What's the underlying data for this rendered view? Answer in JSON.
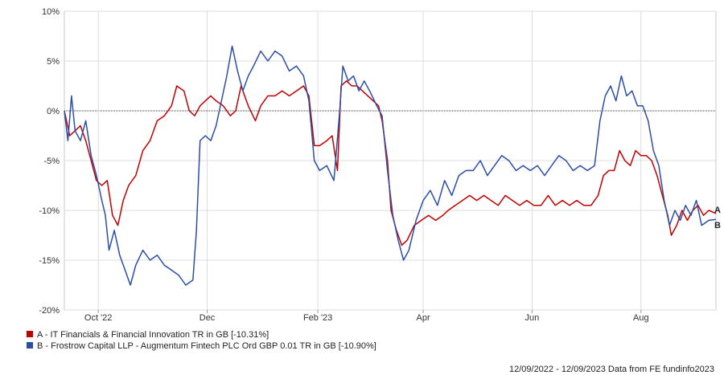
{
  "chart_data": {
    "type": "line",
    "ylim": [
      -20,
      10
    ],
    "y_ticks": [
      10,
      5,
      0,
      -5,
      -10,
      -15,
      -20
    ],
    "y_tick_labels": [
      "10%",
      "5%",
      "0%",
      "-5%",
      "-10%",
      "-15%",
      "-20%"
    ],
    "x_range": [
      "2022-09-12",
      "2023-09-12"
    ],
    "x_ticks": [
      "2022-10-01",
      "2022-12-01",
      "2023-02-01",
      "2023-04-01",
      "2023-06-01",
      "2023-08-01"
    ],
    "x_tick_labels": [
      "Oct '22",
      "Dec",
      "Feb '23",
      "Apr",
      "Jun",
      "Aug"
    ],
    "grid": true,
    "zero_line": true,
    "legend_position": "bottom-left",
    "series": [
      {
        "name": "A - IT Financials & Financial Innovation TR in GB [-10.31%]",
        "end_marker": "A",
        "color": "#c00000",
        "points": [
          [
            "2022-09-12",
            0.0
          ],
          [
            "2022-09-15",
            -2.5
          ],
          [
            "2022-09-18",
            -2.0
          ],
          [
            "2022-09-21",
            -1.5
          ],
          [
            "2022-09-24",
            -3.0
          ],
          [
            "2022-09-27",
            -5.0
          ],
          [
            "2022-09-30",
            -7.0
          ],
          [
            "2022-10-03",
            -7.5
          ],
          [
            "2022-10-06",
            -7.0
          ],
          [
            "2022-10-09",
            -10.5
          ],
          [
            "2022-10-12",
            -11.5
          ],
          [
            "2022-10-15",
            -9.0
          ],
          [
            "2022-10-18",
            -7.5
          ],
          [
            "2022-10-22",
            -6.5
          ],
          [
            "2022-10-26",
            -4.0
          ],
          [
            "2022-10-30",
            -3.0
          ],
          [
            "2022-11-03",
            -1.0
          ],
          [
            "2022-11-07",
            -0.5
          ],
          [
            "2022-11-11",
            0.5
          ],
          [
            "2022-11-14",
            2.5
          ],
          [
            "2022-11-18",
            2.0
          ],
          [
            "2022-11-21",
            0.0
          ],
          [
            "2022-11-24",
            -0.5
          ],
          [
            "2022-11-27",
            0.5
          ],
          [
            "2022-11-30",
            1.0
          ],
          [
            "2022-12-03",
            1.5
          ],
          [
            "2022-12-06",
            1.0
          ],
          [
            "2022-12-10",
            0.5
          ],
          [
            "2022-12-14",
            -0.5
          ],
          [
            "2022-12-17",
            0.0
          ],
          [
            "2022-12-20",
            2.5
          ],
          [
            "2022-12-24",
            0.5
          ],
          [
            "2022-12-28",
            -1.0
          ],
          [
            "2022-12-31",
            0.5
          ],
          [
            "2023-01-04",
            1.5
          ],
          [
            "2023-01-08",
            1.5
          ],
          [
            "2023-01-12",
            2.0
          ],
          [
            "2023-01-16",
            1.5
          ],
          [
            "2023-01-20",
            2.0
          ],
          [
            "2023-01-24",
            2.5
          ],
          [
            "2023-01-27",
            1.5
          ],
          [
            "2023-01-30",
            -3.5
          ],
          [
            "2023-02-02",
            -3.5
          ],
          [
            "2023-02-06",
            -3.0
          ],
          [
            "2023-02-09",
            -2.5
          ],
          [
            "2023-02-12",
            -6.0
          ],
          [
            "2023-02-14",
            2.5
          ],
          [
            "2023-02-17",
            3.0
          ],
          [
            "2023-02-20",
            2.5
          ],
          [
            "2023-02-23",
            2.5
          ],
          [
            "2023-02-26",
            2.0
          ],
          [
            "2023-03-01",
            1.5
          ],
          [
            "2023-03-04",
            1.0
          ],
          [
            "2023-03-07",
            0.5
          ],
          [
            "2023-03-09",
            -1.0
          ],
          [
            "2023-03-12",
            -5.0
          ],
          [
            "2023-03-14",
            -10.0
          ],
          [
            "2023-03-17",
            -12.0
          ],
          [
            "2023-03-20",
            -13.5
          ],
          [
            "2023-03-23",
            -13.0
          ],
          [
            "2023-03-27",
            -11.5
          ],
          [
            "2023-03-31",
            -11.0
          ],
          [
            "2023-04-04",
            -10.5
          ],
          [
            "2023-04-08",
            -11.0
          ],
          [
            "2023-04-12",
            -10.5
          ],
          [
            "2023-04-15",
            -10.0
          ],
          [
            "2023-04-19",
            -9.5
          ],
          [
            "2023-04-23",
            -9.0
          ],
          [
            "2023-04-27",
            -8.5
          ],
          [
            "2023-05-01",
            -9.0
          ],
          [
            "2023-05-05",
            -8.5
          ],
          [
            "2023-05-09",
            -9.0
          ],
          [
            "2023-05-13",
            -9.5
          ],
          [
            "2023-05-17",
            -8.5
          ],
          [
            "2023-05-21",
            -9.0
          ],
          [
            "2023-05-25",
            -9.5
          ],
          [
            "2023-05-29",
            -9.0
          ],
          [
            "2023-06-02",
            -9.5
          ],
          [
            "2023-06-06",
            -9.5
          ],
          [
            "2023-06-10",
            -8.5
          ],
          [
            "2023-06-14",
            -9.5
          ],
          [
            "2023-06-18",
            -9.0
          ],
          [
            "2023-06-22",
            -9.5
          ],
          [
            "2023-06-26",
            -9.0
          ],
          [
            "2023-06-30",
            -9.5
          ],
          [
            "2023-07-04",
            -9.5
          ],
          [
            "2023-07-08",
            -8.5
          ],
          [
            "2023-07-11",
            -6.5
          ],
          [
            "2023-07-14",
            -6.0
          ],
          [
            "2023-07-17",
            -6.0
          ],
          [
            "2023-07-20",
            -4.0
          ],
          [
            "2023-07-23",
            -5.0
          ],
          [
            "2023-07-26",
            -5.5
          ],
          [
            "2023-07-29",
            -4.0
          ],
          [
            "2023-08-01",
            -4.5
          ],
          [
            "2023-08-04",
            -4.5
          ],
          [
            "2023-08-07",
            -5.0
          ],
          [
            "2023-08-10",
            -6.5
          ],
          [
            "2023-08-13",
            -8.5
          ],
          [
            "2023-08-16",
            -10.5
          ],
          [
            "2023-08-18",
            -12.5
          ],
          [
            "2023-08-21",
            -11.5
          ],
          [
            "2023-08-24",
            -10.0
          ],
          [
            "2023-08-27",
            -11.0
          ],
          [
            "2023-08-30",
            -10.0
          ],
          [
            "2023-09-02",
            -9.5
          ],
          [
            "2023-09-05",
            -10.5
          ],
          [
            "2023-09-08",
            -10.0
          ],
          [
            "2023-09-12",
            -10.31
          ]
        ]
      },
      {
        "name": "B - Frostrow Capital LLP - Augmentum Fintech PLC Ord GBP 0.01 TR in GB [-10.90%]",
        "end_marker": "B",
        "color": "#2a4ea6",
        "points": [
          [
            "2022-09-12",
            0.0
          ],
          [
            "2022-09-14",
            -3.0
          ],
          [
            "2022-09-16",
            1.5
          ],
          [
            "2022-09-18",
            -2.0
          ],
          [
            "2022-09-21",
            -3.0
          ],
          [
            "2022-09-24",
            -1.0
          ],
          [
            "2022-09-27",
            -4.5
          ],
          [
            "2022-09-30",
            -6.5
          ],
          [
            "2022-10-03",
            -9.0
          ],
          [
            "2022-10-05",
            -10.5
          ],
          [
            "2022-10-07",
            -14.0
          ],
          [
            "2022-10-10",
            -12.0
          ],
          [
            "2022-10-13",
            -14.5
          ],
          [
            "2022-10-16",
            -16.0
          ],
          [
            "2022-10-19",
            -17.5
          ],
          [
            "2022-10-22",
            -15.5
          ],
          [
            "2022-10-26",
            -14.0
          ],
          [
            "2022-10-30",
            -15.0
          ],
          [
            "2022-11-03",
            -14.5
          ],
          [
            "2022-11-07",
            -15.5
          ],
          [
            "2022-11-11",
            -16.0
          ],
          [
            "2022-11-15",
            -16.5
          ],
          [
            "2022-11-19",
            -17.5
          ],
          [
            "2022-11-23",
            -17.0
          ],
          [
            "2022-11-25",
            -12.0
          ],
          [
            "2022-11-27",
            -3.0
          ],
          [
            "2022-11-30",
            -2.5
          ],
          [
            "2022-12-03",
            -3.0
          ],
          [
            "2022-12-06",
            -1.5
          ],
          [
            "2022-12-09",
            1.0
          ],
          [
            "2022-12-12",
            3.5
          ],
          [
            "2022-12-15",
            6.5
          ],
          [
            "2022-12-18",
            4.0
          ],
          [
            "2022-12-21",
            2.0
          ],
          [
            "2022-12-24",
            3.5
          ],
          [
            "2022-12-27",
            4.5
          ],
          [
            "2022-12-31",
            6.0
          ],
          [
            "2023-01-04",
            5.0
          ],
          [
            "2023-01-08",
            6.0
          ],
          [
            "2023-01-12",
            5.5
          ],
          [
            "2023-01-16",
            4.0
          ],
          [
            "2023-01-20",
            4.5
          ],
          [
            "2023-01-24",
            3.5
          ],
          [
            "2023-01-27",
            1.0
          ],
          [
            "2023-01-30",
            -5.0
          ],
          [
            "2023-02-02",
            -6.0
          ],
          [
            "2023-02-06",
            -5.5
          ],
          [
            "2023-02-10",
            -7.0
          ],
          [
            "2023-02-13",
            -0.5
          ],
          [
            "2023-02-15",
            4.5
          ],
          [
            "2023-02-18",
            3.0
          ],
          [
            "2023-02-21",
            3.5
          ],
          [
            "2023-02-24",
            2.0
          ],
          [
            "2023-02-27",
            3.0
          ],
          [
            "2023-03-02",
            2.0
          ],
          [
            "2023-03-06",
            0.5
          ],
          [
            "2023-03-09",
            -0.5
          ],
          [
            "2023-03-12",
            -6.0
          ],
          [
            "2023-03-15",
            -10.5
          ],
          [
            "2023-03-18",
            -13.0
          ],
          [
            "2023-03-21",
            -15.0
          ],
          [
            "2023-03-24",
            -14.0
          ],
          [
            "2023-03-28",
            -11.0
          ],
          [
            "2023-04-01",
            -9.0
          ],
          [
            "2023-04-05",
            -8.0
          ],
          [
            "2023-04-09",
            -9.5
          ],
          [
            "2023-04-13",
            -7.0
          ],
          [
            "2023-04-17",
            -8.5
          ],
          [
            "2023-04-21",
            -6.5
          ],
          [
            "2023-04-25",
            -6.0
          ],
          [
            "2023-04-29",
            -6.0
          ],
          [
            "2023-05-03",
            -5.0
          ],
          [
            "2023-05-07",
            -6.5
          ],
          [
            "2023-05-11",
            -5.5
          ],
          [
            "2023-05-15",
            -4.5
          ],
          [
            "2023-05-19",
            -5.0
          ],
          [
            "2023-05-23",
            -6.0
          ],
          [
            "2023-05-27",
            -5.5
          ],
          [
            "2023-05-31",
            -6.0
          ],
          [
            "2023-06-04",
            -5.5
          ],
          [
            "2023-06-08",
            -6.5
          ],
          [
            "2023-06-12",
            -5.5
          ],
          [
            "2023-06-16",
            -4.5
          ],
          [
            "2023-06-20",
            -5.0
          ],
          [
            "2023-06-24",
            -6.0
          ],
          [
            "2023-06-28",
            -5.5
          ],
          [
            "2023-07-02",
            -6.0
          ],
          [
            "2023-07-06",
            -5.5
          ],
          [
            "2023-07-09",
            -1.0
          ],
          [
            "2023-07-12",
            1.5
          ],
          [
            "2023-07-15",
            2.5
          ],
          [
            "2023-07-18",
            1.0
          ],
          [
            "2023-07-21",
            3.5
          ],
          [
            "2023-07-24",
            1.5
          ],
          [
            "2023-07-27",
            2.0
          ],
          [
            "2023-07-30",
            0.5
          ],
          [
            "2023-08-02",
            0.5
          ],
          [
            "2023-08-05",
            -1.0
          ],
          [
            "2023-08-08",
            -4.0
          ],
          [
            "2023-08-11",
            -5.5
          ],
          [
            "2023-08-14",
            -9.0
          ],
          [
            "2023-08-17",
            -11.5
          ],
          [
            "2023-08-20",
            -10.0
          ],
          [
            "2023-08-23",
            -11.0
          ],
          [
            "2023-08-26",
            -9.5
          ],
          [
            "2023-08-29",
            -10.5
          ],
          [
            "2023-09-01",
            -9.0
          ],
          [
            "2023-09-04",
            -11.5
          ],
          [
            "2023-09-08",
            -11.0
          ],
          [
            "2023-09-12",
            -10.9
          ]
        ]
      }
    ]
  },
  "footer": {
    "text": "12/09/2022 - 12/09/2023 Data from FE fundinfo2023"
  }
}
